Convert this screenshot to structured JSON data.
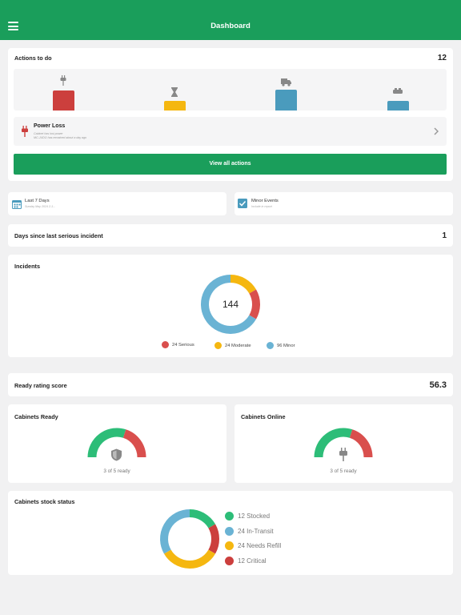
{
  "header": {
    "title": "Dashboard",
    "menu_icon": "hamburger-menu-icon"
  },
  "actions": {
    "title": "Actions to do",
    "count": "12",
    "chart_data": {
      "type": "bar",
      "categories": [
        "power-plug",
        "hourglass",
        "delivery-truck",
        "cabinet-stack"
      ],
      "values": [
        25,
        12,
        26,
        12
      ],
      "colors": [
        "#cc3f3d",
        "#f5b710",
        "#4a9bbd",
        "#4a9bbd"
      ]
    },
    "alert": {
      "title": "Power Loss",
      "line1": "Cabinet has lost power",
      "line2": "MC-JUDO has remained about a day ago"
    },
    "view_all_label": "View all actions"
  },
  "filters": {
    "period_title": "Last 7 Days",
    "period_sub": "Sunday May 2024 2-1...",
    "events_title": "Minor Events",
    "events_sub": "Include in report"
  },
  "days_since": {
    "label": "Days since last serious incident",
    "value": "1"
  },
  "incidents": {
    "title": "Incidents",
    "total": "144",
    "chart_data": {
      "type": "pie",
      "series": [
        {
          "name": "24 Serious",
          "value": 24,
          "color": "#d94f4d"
        },
        {
          "name": "24 Moderate",
          "value": 24,
          "color": "#f5b710"
        },
        {
          "name": "96 Minor",
          "value": 96,
          "color": "#6ab3d4"
        }
      ]
    }
  },
  "ready_rating": {
    "label": "Ready rating score",
    "value": "56.3"
  },
  "cabinets_ready": {
    "title": "Cabinets Ready",
    "caption": "3 of 5 ready",
    "ratio": 0.6,
    "icon": "shield-icon"
  },
  "cabinets_online": {
    "title": "Cabinets Online",
    "caption": "3 of 5 ready",
    "ratio": 0.6,
    "icon": "plug-icon"
  },
  "stock": {
    "title": "Cabinets stock status",
    "chart_data": {
      "type": "pie",
      "series": [
        {
          "name": "12 Stocked",
          "value": 12,
          "color": "#2dbd78"
        },
        {
          "name": "24 In-Transit",
          "value": 24,
          "color": "#6ab3d4"
        },
        {
          "name": "24 Needs Refill",
          "value": 24,
          "color": "#f5b710"
        },
        {
          "name": "12 Critical",
          "value": 12,
          "color": "#cc3f3d"
        }
      ]
    }
  },
  "colors": {
    "brand": "#1a9e5b",
    "danger": "#cc3f3d",
    "warning": "#f5b710",
    "info": "#6ab3d4",
    "success": "#2dbd78"
  }
}
